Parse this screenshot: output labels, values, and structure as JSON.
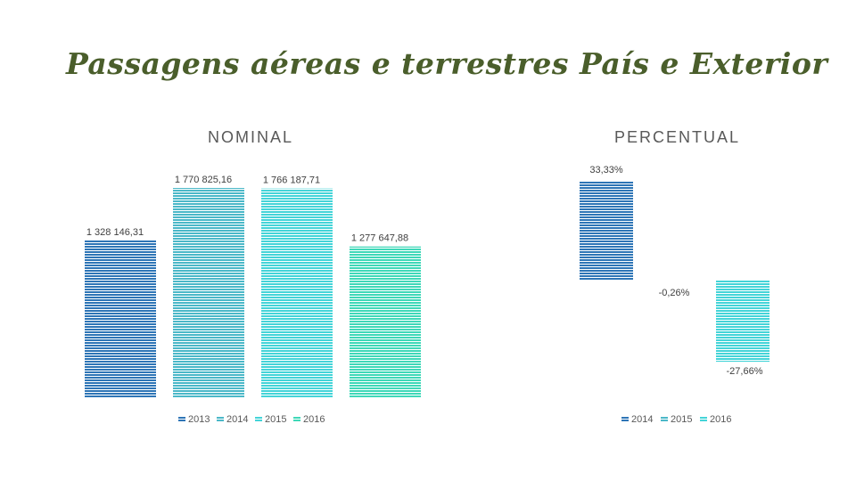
{
  "title": "Passagens aéreas e terrestres País e Exterior",
  "chart_data": [
    {
      "type": "bar",
      "title": "NOMINAL",
      "categories": [
        "2013",
        "2014",
        "2015",
        "2016"
      ],
      "values": [
        1328146.31,
        1770825.16,
        1766187.71,
        1277647.88
      ],
      "data_labels": [
        "1 328 146,31",
        "1 770 825,16",
        "1 766 187,71",
        "1 277 647,88"
      ],
      "colors": [
        "#2e75b6",
        "#4bb8c8",
        "#44d4d8",
        "#3fd8b8"
      ],
      "ylim": [
        0,
        1800000
      ],
      "legend": "bottom",
      "grid": false
    },
    {
      "type": "bar",
      "title": "PERCENTUAL",
      "categories": [
        "2014",
        "2015",
        "2016"
      ],
      "values": [
        33.33,
        -0.26,
        -27.66
      ],
      "data_labels": [
        "33,33%",
        "-0,26%",
        "-27,66%"
      ],
      "colors": [
        "#2e75b6",
        "#4bb8c8",
        "#44d4d8"
      ],
      "ylim": [
        -27.66,
        33.33
      ],
      "legend": "bottom",
      "grid": false
    }
  ]
}
